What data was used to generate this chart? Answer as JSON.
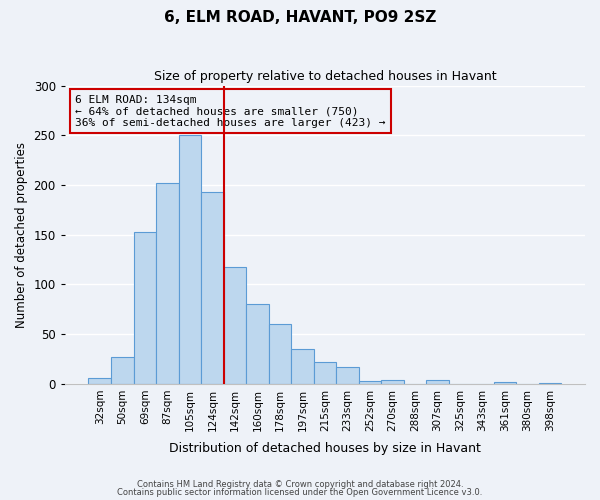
{
  "title": "6, ELM ROAD, HAVANT, PO9 2SZ",
  "subtitle": "Size of property relative to detached houses in Havant",
  "xlabel": "Distribution of detached houses by size in Havant",
  "ylabel": "Number of detached properties",
  "bar_labels": [
    "32sqm",
    "50sqm",
    "69sqm",
    "87sqm",
    "105sqm",
    "124sqm",
    "142sqm",
    "160sqm",
    "178sqm",
    "197sqm",
    "215sqm",
    "233sqm",
    "252sqm",
    "270sqm",
    "288sqm",
    "307sqm",
    "325sqm",
    "343sqm",
    "361sqm",
    "380sqm",
    "398sqm"
  ],
  "bar_values": [
    6,
    27,
    153,
    202,
    250,
    193,
    118,
    80,
    60,
    35,
    22,
    17,
    3,
    4,
    0,
    4,
    0,
    0,
    2,
    0,
    1
  ],
  "bar_color": "#bdd7ee",
  "bar_edge_color": "#5b9bd5",
  "vline_x": 5.5,
  "vline_color": "#cc0000",
  "annotation_title": "6 ELM ROAD: 134sqm",
  "annotation_line1": "← 64% of detached houses are smaller (750)",
  "annotation_line2": "36% of semi-detached houses are larger (423) →",
  "annotation_box_edge": "#cc0000",
  "ylim": [
    0,
    300
  ],
  "yticks": [
    0,
    50,
    100,
    150,
    200,
    250,
    300
  ],
  "footer1": "Contains HM Land Registry data © Crown copyright and database right 2024.",
  "footer2": "Contains public sector information licensed under the Open Government Licence v3.0.",
  "bg_color": "#eef2f8",
  "grid_color": "#ffffff",
  "spine_color": "#c0c0c0"
}
